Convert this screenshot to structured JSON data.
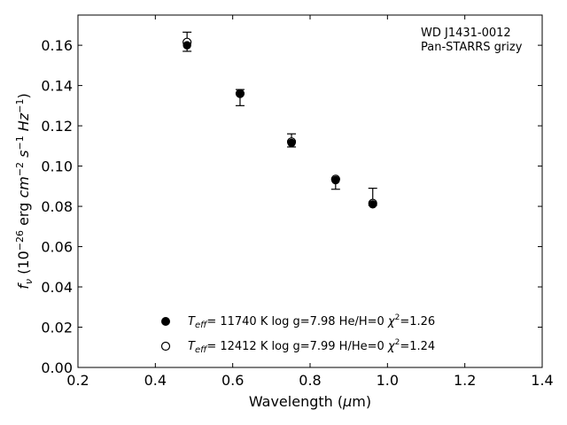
{
  "chart_data": {
    "type": "scatter",
    "title": "",
    "xlabel": "Wavelength (μm)",
    "ylabel": "f_ν (10^-26 erg cm^-2 s^-1 Hz^-1)",
    "xlim": [
      0.2,
      1.4
    ],
    "ylim": [
      0.0,
      0.175
    ],
    "xticks": [
      0.2,
      0.4,
      0.6,
      0.8,
      1.0,
      1.2,
      1.4
    ],
    "xtick_labels": [
      "0.2",
      "0.4",
      "0.6",
      "0.8",
      "1.0",
      "1.2",
      "1.4"
    ],
    "yticks": [
      0.0,
      0.02,
      0.04,
      0.06,
      0.08,
      0.1,
      0.12,
      0.14,
      0.16
    ],
    "ytick_labels": [
      "0.00",
      "0.02",
      "0.04",
      "0.06",
      "0.08",
      "0.10",
      "0.12",
      "0.14",
      "0.16"
    ],
    "grid": false,
    "legend_position": "bottom-center",
    "annotation": {
      "object": "WD J1431-0012",
      "photometry": "Pan-STARRS grizy"
    },
    "observed": {
      "x": [
        0.482,
        0.619,
        0.752,
        0.866,
        0.962
      ],
      "y": [
        0.1615,
        0.1355,
        0.1125,
        0.0915,
        0.0815
      ],
      "yerr_low": [
        0.157,
        0.13,
        0.1095,
        0.0885,
        0.0805
      ],
      "yerr_high": [
        0.1665,
        0.138,
        0.116,
        0.0935,
        0.089
      ]
    },
    "series": [
      {
        "name": "Teff= 11740 K  log g=7.98  He/H=0  χ2=1.26",
        "marker": "filled-circle",
        "color": "#000000",
        "x": [
          0.482,
          0.619,
          0.752,
          0.866,
          0.962
        ],
        "y": [
          0.16,
          0.136,
          0.1115,
          0.093,
          0.081
        ]
      },
      {
        "name": "Teff= 12412 K  log g=7.99  H/He=0  χ2=1.24",
        "marker": "open-circle",
        "color": "#000000",
        "x": [
          0.482,
          0.619,
          0.752,
          0.866,
          0.962
        ],
        "y": [
          0.1615,
          0.136,
          0.112,
          0.0935,
          0.0815
        ]
      }
    ]
  }
}
